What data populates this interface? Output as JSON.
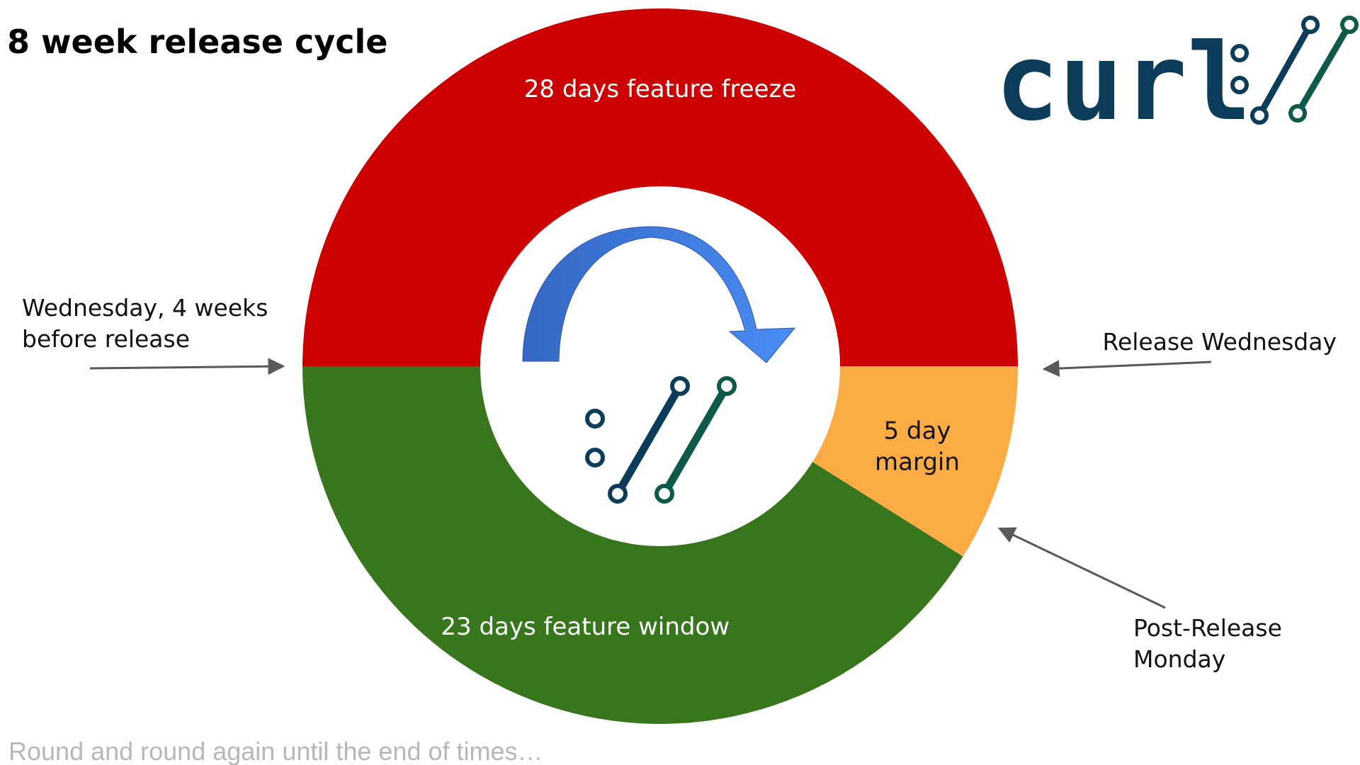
{
  "title": "8 week release cycle",
  "caption": "Round and round again until the end of times…",
  "logo": {
    "text": "curl",
    "icon": "curl-logo-icon",
    "colors": {
      "text": "#0b3d5b",
      "slash_dark": "#0b3d5b",
      "slash_teal": "#0e5a4a"
    }
  },
  "colors": {
    "feature_freeze": "#cc0000",
    "feature_window": "#38761d",
    "margin": "#fbac45",
    "arrow_gradient_start": "#3467c3",
    "arrow_gradient_end": "#4a8df5",
    "pointer_arrows": "#595959"
  },
  "cycle": {
    "segments": [
      {
        "name": "feature-freeze",
        "label_lines": [
          "28 days feature freeze"
        ],
        "days": 28,
        "color": "#cc0000",
        "label_color": "#ffffff"
      },
      {
        "name": "margin",
        "label_lines": [
          "5 day",
          "margin"
        ],
        "days": 5,
        "color": "#fbac45",
        "label_color": "#111111"
      },
      {
        "name": "feature-window",
        "label_lines": [
          "23 days feature window"
        ],
        "days": 23,
        "color": "#38761d",
        "label_color": "#ffffff"
      }
    ],
    "center_icon": "cycle-arrow-icon"
  },
  "annotations": [
    {
      "name": "wednesday-before-release",
      "lines": [
        "Wednesday, 4 weeks",
        "before release"
      ]
    },
    {
      "name": "release-wednesday",
      "lines": [
        "Release Wednesday"
      ]
    },
    {
      "name": "post-release-monday",
      "lines": [
        "Post-Release",
        "Monday"
      ]
    }
  ]
}
